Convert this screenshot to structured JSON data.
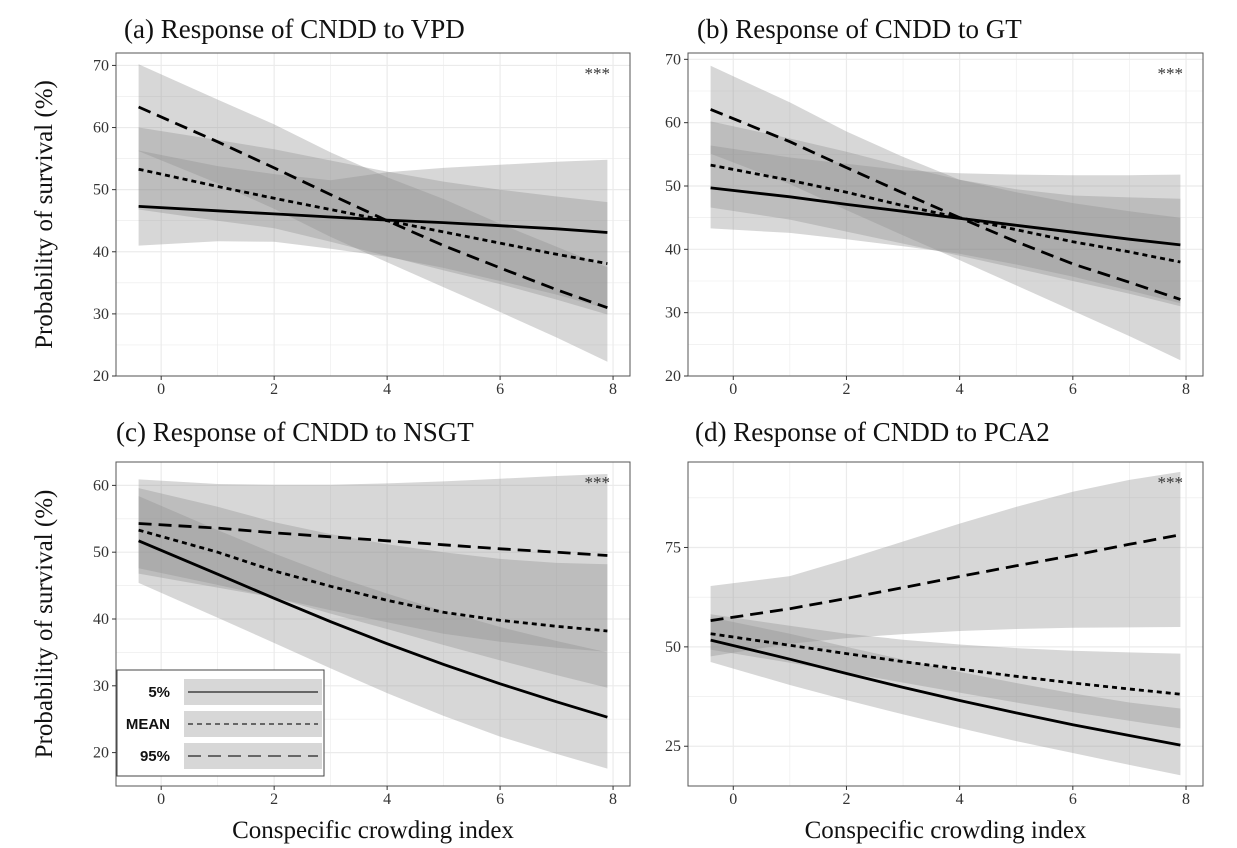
{
  "colors": {
    "ribbon": "#8c8c8c",
    "ribbon_opacity": 0.35,
    "line": "#000000",
    "grid": "#ebebeb",
    "panel_border": "#555555"
  },
  "y_axis_label": "Probability of survival (%)",
  "x_axis_label": "Conspecific crowding index",
  "legend": {
    "entries": [
      {
        "label": "5%",
        "linetype": "solid"
      },
      {
        "label": "MEAN",
        "linetype": "dotted"
      },
      {
        "label": "95%",
        "linetype": "dashed"
      }
    ]
  },
  "chart_data": [
    {
      "type": "line",
      "title": "(a) Response of CNDD to VPD",
      "annotation": "***",
      "xlim": [
        -0.8,
        8.3
      ],
      "ylim": [
        20,
        72
      ],
      "x_ticks": [
        0,
        2,
        4,
        6,
        8
      ],
      "y_ticks": [
        20,
        30,
        40,
        50,
        60,
        70
      ],
      "series": [
        {
          "name": "5%",
          "linetype": "solid",
          "x": [
            -0.4,
            1,
            2,
            3,
            4,
            5,
            6,
            7,
            7.9
          ],
          "y": [
            47.3,
            46.6,
            46.1,
            45.6,
            45.1,
            44.7,
            44.2,
            43.7,
            43.1
          ],
          "lower": [
            41,
            41.7,
            41.6,
            40.5,
            39.2,
            37.4,
            35.3,
            33.1,
            30.8
          ],
          "upper": [
            56.3,
            53.8,
            52.5,
            51.5,
            52.8,
            53.5,
            54,
            54.5,
            54.8
          ]
        },
        {
          "name": "MEAN",
          "linetype": "dotted",
          "x": [
            -0.4,
            1,
            2,
            3,
            4,
            5,
            6,
            7,
            7.9
          ],
          "y": [
            53.3,
            50.5,
            48.6,
            46.8,
            45.0,
            43.2,
            41.4,
            39.6,
            38.1
          ],
          "lower": [
            46.8,
            45,
            43.8,
            41.6,
            39.3,
            37,
            34.8,
            32.3,
            29.9
          ],
          "upper": [
            60,
            58,
            56.5,
            54.7,
            52.9,
            51.3,
            50,
            48.9,
            48
          ]
        },
        {
          "name": "95%",
          "linetype": "dashed",
          "x": [
            -0.4,
            1,
            2,
            3,
            4,
            5,
            6,
            7,
            7.9
          ],
          "y": [
            63.3,
            57.7,
            53.5,
            49.2,
            45.0,
            41.0,
            37.4,
            33.9,
            31.0
          ],
          "lower": [
            56.2,
            51,
            46.9,
            42.4,
            38.3,
            34.3,
            30.3,
            26.2,
            22.3
          ],
          "upper": [
            70.2,
            64.5,
            60.5,
            56,
            52,
            48.5,
            44.5,
            40.8,
            37.5
          ]
        }
      ]
    },
    {
      "type": "line",
      "title": "(b) Response of CNDD to GT",
      "annotation": "***",
      "xlim": [
        -0.8,
        8.3
      ],
      "ylim": [
        20,
        71
      ],
      "x_ticks": [
        0,
        2,
        4,
        6,
        8
      ],
      "y_ticks": [
        20,
        30,
        40,
        50,
        60,
        70
      ],
      "series": [
        {
          "name": "5%",
          "linetype": "solid",
          "x": [
            -0.4,
            1,
            2,
            3,
            4,
            5,
            6,
            7,
            7.9
          ],
          "y": [
            49.7,
            48.3,
            47.1,
            46.0,
            44.9,
            43.8,
            42.7,
            41.6,
            40.7
          ],
          "lower": [
            43.3,
            42.6,
            41.6,
            40.5,
            39.3,
            37.6,
            35.7,
            33.5,
            31.5
          ],
          "upper": [
            56.4,
            54.5,
            53.5,
            52.5,
            52,
            51.8,
            51.7,
            51.7,
            51.8
          ]
        },
        {
          "name": "MEAN",
          "linetype": "dotted",
          "x": [
            -0.4,
            1,
            2,
            3,
            4,
            5,
            6,
            7,
            7.9
          ],
          "y": [
            53.3,
            50.9,
            49.0,
            46.9,
            45.0,
            43.1,
            41.2,
            39.6,
            38.0
          ],
          "lower": [
            46.6,
            44.7,
            42.8,
            40.9,
            39,
            37,
            35,
            33,
            31
          ],
          "upper": [
            60.2,
            57.5,
            55.4,
            53.1,
            51,
            49.5,
            48.5,
            48.2,
            48
          ]
        },
        {
          "name": "95%",
          "linetype": "dashed",
          "x": [
            -0.4,
            1,
            2,
            3,
            4,
            5,
            6,
            7,
            7.9
          ],
          "y": [
            62.1,
            57.0,
            52.9,
            48.9,
            45.0,
            41.2,
            37.7,
            34.8,
            32.1
          ],
          "lower": [
            55.1,
            50.3,
            46.2,
            42.2,
            38.3,
            34.3,
            30.3,
            26.3,
            22.5
          ],
          "upper": [
            69,
            63.2,
            58.6,
            54.6,
            51,
            49,
            47.3,
            46,
            45
          ]
        }
      ]
    },
    {
      "type": "line",
      "title": "(c) Response of CNDD to NSGT",
      "annotation": "***",
      "xlim": [
        -0.8,
        8.3
      ],
      "ylim": [
        15,
        63.5
      ],
      "x_ticks": [
        0,
        2,
        4,
        6,
        8
      ],
      "y_ticks": [
        20,
        30,
        40,
        50,
        60
      ],
      "series": [
        {
          "name": "5%",
          "linetype": "solid",
          "x": [
            -0.4,
            1,
            2,
            3,
            4,
            5,
            6,
            7,
            7.9
          ],
          "y": [
            51.7,
            46.7,
            43.1,
            39.6,
            36.3,
            33.2,
            30.3,
            27.6,
            25.3
          ],
          "lower": [
            45.4,
            40.2,
            36.4,
            32.6,
            28.9,
            25.5,
            22.4,
            19.8,
            17.6
          ],
          "upper": [
            58.4,
            53.3,
            49.8,
            46.6,
            43.8,
            41.2,
            38.8,
            36.7,
            35
          ]
        },
        {
          "name": "MEAN",
          "linetype": "dotted",
          "x": [
            -0.4,
            1,
            2,
            3,
            4,
            5,
            6,
            7,
            7.9
          ],
          "y": [
            53.3,
            50.0,
            47.2,
            44.9,
            42.8,
            41.0,
            39.8,
            38.9,
            38.2
          ],
          "lower": [
            47.6,
            45.1,
            43.2,
            40.8,
            38.5,
            36.1,
            33.8,
            31.6,
            29.7
          ],
          "upper": [
            59.6,
            56.8,
            54.5,
            52.7,
            51.2,
            50,
            49,
            48.4,
            48.2
          ]
        },
        {
          "name": "95%",
          "linetype": "dashed",
          "x": [
            -0.4,
            1,
            2,
            3,
            4,
            5,
            6,
            7,
            7.9
          ],
          "y": [
            54.3,
            53.6,
            52.9,
            52.3,
            51.7,
            51.1,
            50.5,
            50.0,
            49.5
          ],
          "lower": [
            46.8,
            44.7,
            43.2,
            41.3,
            39.5,
            37.8,
            36.6,
            35.7,
            35.1
          ],
          "upper": [
            60.9,
            60.2,
            60.1,
            60.1,
            60.3,
            60.6,
            61,
            61.4,
            61.7
          ]
        }
      ]
    },
    {
      "type": "line",
      "title": "(d) Response of CNDD to PCA2",
      "annotation": "***",
      "xlim": [
        -0.8,
        8.3
      ],
      "ylim": [
        15,
        96.5
      ],
      "x_ticks": [
        0,
        2,
        4,
        6,
        8
      ],
      "y_ticks": [
        25,
        50,
        75
      ],
      "series": [
        {
          "name": "5%",
          "linetype": "solid",
          "x": [
            -0.4,
            1,
            2,
            3,
            4,
            5,
            6,
            7,
            7.9
          ],
          "y": [
            51.7,
            46.9,
            43.3,
            39.8,
            36.5,
            33.4,
            30.4,
            27.7,
            25.3
          ],
          "lower": [
            46.2,
            40.4,
            36.6,
            33,
            29.6,
            26.3,
            23.3,
            20.3,
            17.7
          ],
          "upper": [
            57.4,
            53.3,
            50,
            46.8,
            43.7,
            40.9,
            38.3,
            36,
            34.5
          ]
        },
        {
          "name": "MEAN",
          "linetype": "dotted",
          "x": [
            -0.4,
            1,
            2,
            3,
            4,
            5,
            6,
            7,
            7.9
          ],
          "y": [
            53.3,
            50.4,
            48.3,
            46.3,
            44.4,
            42.6,
            40.9,
            39.4,
            38.1
          ],
          "lower": [
            49.3,
            46,
            43.5,
            41,
            38.5,
            36,
            33.6,
            31.4,
            29.5
          ],
          "upper": [
            58.2,
            55.3,
            53.3,
            51.8,
            50.6,
            49.7,
            49,
            48.6,
            48.3
          ]
        },
        {
          "name": "95%",
          "linetype": "dashed",
          "x": [
            -0.4,
            1,
            2,
            3,
            4,
            5,
            6,
            7,
            7.9
          ],
          "y": [
            56.6,
            59.6,
            62.2,
            64.9,
            67.7,
            70.4,
            73.0,
            75.8,
            78.2
          ],
          "lower": [
            47.6,
            50.8,
            52.2,
            53.2,
            54,
            54.5,
            54.8,
            54.9,
            55
          ],
          "upper": [
            65.3,
            67.8,
            72,
            76.5,
            81,
            85.2,
            89,
            92,
            94
          ]
        }
      ]
    }
  ]
}
